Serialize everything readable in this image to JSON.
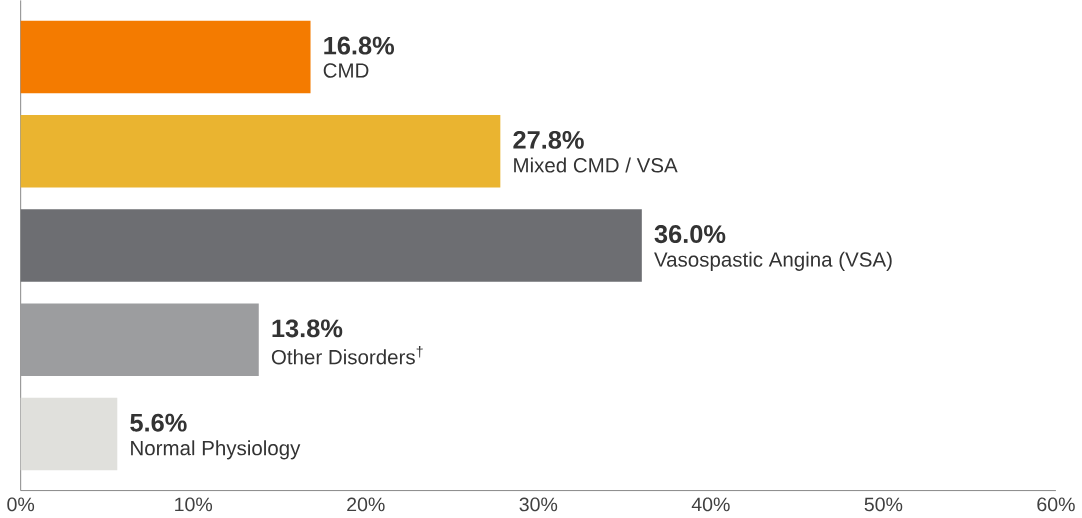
{
  "chart_data": {
    "type": "bar",
    "orientation": "horizontal",
    "categories": [
      "CMD",
      "Mixed CMD / VSA",
      "Vasospastic Angina (VSA)",
      "Other Disorders$^{†}$",
      "Normal Physiology"
    ],
    "values": [
      16.8,
      27.8,
      36.0,
      13.8,
      5.6
    ],
    "colors": [
      "#f47b00",
      "#eab430",
      "#6d6e72",
      "#9c9d9f",
      "#e0e0dc"
    ],
    "value_labels": [
      "16.8%",
      "27.8%",
      "36.0%",
      "13.8%",
      "5.6%"
    ],
    "xlim": [
      0,
      60
    ],
    "xticks": [
      {
        "value": 0,
        "label": "0%"
      },
      {
        "value": 10,
        "label": "10%"
      },
      {
        "value": 20,
        "label": "20%"
      },
      {
        "value": 30,
        "label": "30%"
      },
      {
        "value": 40,
        "label": "40%"
      },
      {
        "value": 50,
        "label": "50%"
      },
      {
        "value": 60,
        "label": "60%"
      }
    ],
    "grid": false
  }
}
